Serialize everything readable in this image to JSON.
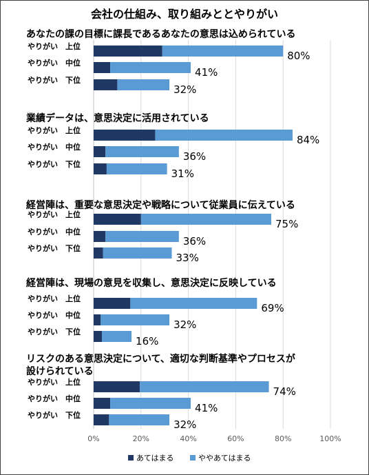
{
  "chart_data": {
    "type": "bar",
    "orientation": "horizontal",
    "stacked": true,
    "title": "会社の仕組み、取り組みととやりがい",
    "xlim": [
      0,
      100
    ],
    "ticks": [
      "0%",
      "20%",
      "40%",
      "60%",
      "80%",
      "100%"
    ],
    "grid": true,
    "legend_position": "bottom",
    "series": [
      {
        "name": "あてはまる",
        "color": "#1f3864"
      },
      {
        "name": "ややあてはまる",
        "color": "#5b9bd5"
      }
    ],
    "groups": [
      {
        "title_lines": [
          "あなたの課の目標に課長であるあなたの意思は込められている"
        ],
        "rows": [
          {
            "label": "やりがい　上位",
            "values": [
              29,
              51
            ],
            "total_label": "80%"
          },
          {
            "label": "やりがい　中位",
            "values": [
              7,
              34
            ],
            "total_label": "41%"
          },
          {
            "label": "やりがい　下位",
            "values": [
              10,
              22
            ],
            "total_label": "32%"
          }
        ]
      },
      {
        "title_lines": [
          "業績データは、意思決定に活用されている"
        ],
        "rows": [
          {
            "label": "やりがい　上位",
            "values": [
              26,
              58
            ],
            "total_label": "84%"
          },
          {
            "label": "やりがい　中位",
            "values": [
              5,
              31
            ],
            "total_label": "36%"
          },
          {
            "label": "やりがい　下位",
            "values": [
              5.5,
              25.5
            ],
            "total_label": "31%"
          }
        ]
      },
      {
        "title_lines": [
          "経営陣は、重要な意思決定や戦略について従業員に伝えている"
        ],
        "rows": [
          {
            "label": "やりがい　上位",
            "values": [
              20,
              55
            ],
            "total_label": "75%"
          },
          {
            "label": "やりがい　中位",
            "values": [
              5,
              31
            ],
            "total_label": "36%"
          },
          {
            "label": "やりがい　下位",
            "values": [
              4,
              29
            ],
            "total_label": "33%"
          }
        ]
      },
      {
        "title_lines": [
          "経営陣は、現場の意見を収集し、意思決定に反映している"
        ],
        "rows": [
          {
            "label": "やりがい　上位",
            "values": [
              15.5,
              53.5
            ],
            "total_label": "69%"
          },
          {
            "label": "やりがい　中位",
            "values": [
              3,
              29
            ],
            "total_label": "32%"
          },
          {
            "label": "やりがい　下位",
            "values": [
              3.5,
              12.5
            ],
            "total_label": "16%"
          }
        ]
      },
      {
        "title_lines": [
          "リスクのある意思決定について、適切な判断基準やプロセスが",
          "設けられている"
        ],
        "rows": [
          {
            "label": "やりがい　上位",
            "values": [
              19.5,
              54.5
            ],
            "total_label": "74%"
          },
          {
            "label": "やりがい　中位",
            "values": [
              7,
              34
            ],
            "total_label": "41%"
          },
          {
            "label": "やりがい　下位",
            "values": [
              6.5,
              25.5
            ],
            "total_label": "32%"
          }
        ]
      }
    ]
  }
}
